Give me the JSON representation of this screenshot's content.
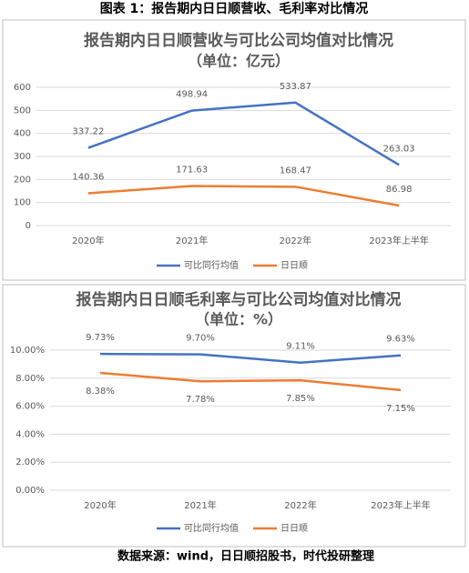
{
  "header_title": "图表 1：报告期内日日顺营收、毛利率对比情况",
  "source": "数据来源：wind，日日顺招股书，时代投研整理",
  "chart_data": [
    {
      "type": "line",
      "title": "报告期内日日顺营收与可比公司均值对比情况",
      "subtitle": "（单位：亿元）",
      "categories": [
        "2020年",
        "2021年",
        "2022年",
        "2023年上半年"
      ],
      "series": [
        {
          "name": "可比同行均值",
          "color": "#4472c4",
          "values": [
            337.22,
            498.94,
            533.87,
            263.03
          ]
        },
        {
          "name": "日日顺",
          "color": "#ed7d31",
          "values": [
            140.36,
            171.63,
            168.47,
            86.98
          ]
        }
      ],
      "ylim": [
        0,
        600
      ],
      "yticks": [
        0,
        100,
        200,
        300,
        400,
        500,
        600
      ],
      "grid": true,
      "legend": "bottom"
    },
    {
      "type": "line",
      "title": "报告期内日日顺毛利率与可比公司均值对比情况",
      "subtitle": "（单位：%）",
      "categories": [
        "2020年",
        "2021年",
        "2022年",
        "2023年上半年"
      ],
      "series": [
        {
          "name": "可比同行均值",
          "color": "#4472c4",
          "values": [
            9.73,
            9.7,
            9.11,
            9.63
          ],
          "value_labels": [
            "9.73%",
            "9.70%",
            "9.11%",
            "9.63%"
          ]
        },
        {
          "name": "日日顺",
          "color": "#ed7d31",
          "values": [
            8.38,
            7.78,
            7.85,
            7.15
          ],
          "value_labels": [
            "8.38%",
            "7.78%",
            "7.85%",
            "7.15%"
          ]
        }
      ],
      "ylim": [
        0,
        10
      ],
      "yticks": [
        {
          "value": 0,
          "label": "0.00%"
        },
        {
          "value": 2,
          "label": "2.00%"
        },
        {
          "value": 4,
          "label": "4.00%"
        },
        {
          "value": 6,
          "label": "6.00%"
        },
        {
          "value": 8,
          "label": "8.00%"
        },
        {
          "value": 10,
          "label": "10.00%"
        }
      ],
      "grid": true,
      "legend": "bottom"
    }
  ]
}
